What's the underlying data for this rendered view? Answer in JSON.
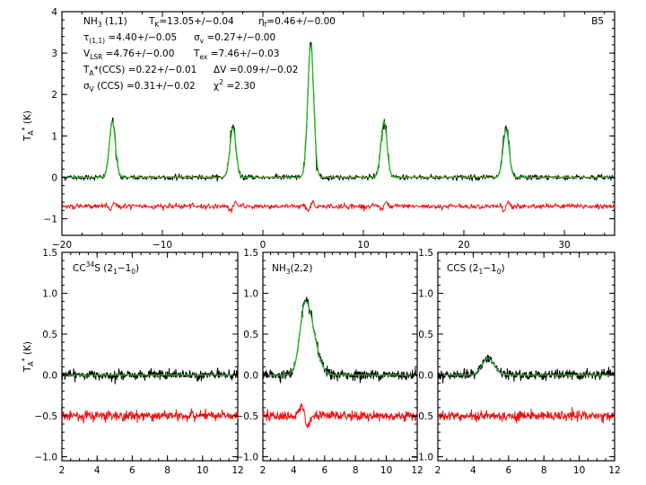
{
  "chart_data": [
    {
      "id": "nh3_11",
      "type": "line",
      "title": "",
      "xlabel": "",
      "ylabel": "T_A* (K)",
      "xlim": [
        -20,
        35
      ],
      "ylim": [
        -1.4,
        4.0
      ],
      "xticks": [
        -20,
        -10,
        0,
        10,
        20,
        30
      ],
      "yticks": [
        -1,
        0,
        1,
        2,
        3,
        4
      ],
      "tag": "B5",
      "annotations": {
        "line1_mol": "NH",
        "line1_mol_sub": "3",
        "line1_trans": " (1,1)",
        "tk_label": "T",
        "tk_sub": "K",
        "tk_val": "=13.05+/−0.04",
        "eta_label": "η",
        "eta_sub": "f",
        "eta_val": "=0.46+/−0.00",
        "tau_label": "τ",
        "tau_sub": "(1,1)",
        "tau_val": " =4.40+/−0.05",
        "sigv_label": "σ",
        "sigv_sub": "v",
        "sigv_val": " =0.27+/−0.00",
        "vlsr_label": "V",
        "vlsr_sub": "LSR",
        "vlsr_val": " =4.76+/−0.00",
        "tex_label": "T",
        "tex_sub": "ex",
        "tex_val": " =7.46+/−0.03",
        "ta_label": "T",
        "ta_sub": "A",
        "ta_val": "*(CCS)  =0.22+/−0.01",
        "dv_label": "ΔV",
        "dv_val": " =0.09+/−0.02",
        "sigccs_label": "σ",
        "sigccs_sub": "V",
        "sigccs_val": " (CCS)  =0.31+/−0.02",
        "chi_label": "χ",
        "chi_sup": "2",
        "chi_val": " =2.30"
      },
      "components": [
        {
          "center": -14.98,
          "amp": 1.35
        },
        {
          "center": -2.98,
          "amp": 1.2
        },
        {
          "center": 4.76,
          "amp": 3.2
        },
        {
          "center": 12.05,
          "amp": 1.35
        },
        {
          "center": 24.2,
          "amp": 1.15
        }
      ],
      "component_width": 0.3,
      "noise_rms": 0.03,
      "residual_offset": -0.7,
      "residual_rms": 0.03,
      "series": [
        {
          "role": "spectrum",
          "color": "#000000"
        },
        {
          "role": "fit",
          "color": "#22bb22"
        },
        {
          "role": "residual",
          "color": "#ee1111"
        }
      ]
    },
    {
      "id": "cc34s",
      "type": "line",
      "title": "",
      "xlabel": "",
      "ylabel": "T_A* (K)",
      "xlim": [
        2,
        12
      ],
      "ylim": [
        -1.05,
        1.5
      ],
      "xticks": [
        2,
        4,
        6,
        8,
        10,
        12
      ],
      "yticks": [
        -1.0,
        -0.5,
        0.0,
        0.5,
        1.0,
        1.5
      ],
      "label": {
        "main": "CC",
        "sup1": "34",
        "mid": "S (2",
        "sub1": "1",
        "dash": "−1",
        "sub2": "0",
        "end": ")"
      },
      "peak": 0.0,
      "center": 4.76,
      "width": 0.4,
      "noise_rms": 0.03,
      "residual_offset": -0.5,
      "residual_rms": 0.03
    },
    {
      "id": "nh3_22",
      "type": "line",
      "title": "",
      "xlabel": "",
      "ylabel": "",
      "xlim": [
        2,
        12
      ],
      "ylim": [
        -1.05,
        1.5
      ],
      "xticks": [
        2,
        4,
        6,
        8,
        10,
        12
      ],
      "yticks": [
        -1.0,
        -0.5,
        0.0,
        0.5,
        1.0,
        1.5
      ],
      "label": {
        "main": "NH",
        "sub1": "3",
        "end": "(2,2)"
      },
      "peak": 0.9,
      "center": 4.76,
      "width": 0.35,
      "tail": 0.55,
      "noise_rms": 0.03,
      "residual_offset": -0.5,
      "residual_rms": 0.03,
      "residual_feature": {
        "center": 4.7,
        "amp": 0.3
      }
    },
    {
      "id": "ccs",
      "type": "line",
      "title": "",
      "xlabel": "",
      "ylabel": "",
      "xlim": [
        2,
        12
      ],
      "ylim": [
        -1.05,
        1.5
      ],
      "xticks": [
        2,
        4,
        6,
        8,
        10,
        12
      ],
      "yticks": [
        -1.0,
        -0.5,
        0.0,
        0.5,
        1.0,
        1.5
      ],
      "label": {
        "main": "CCS (2",
        "sub1": "1",
        "dash": "−1",
        "sub2": "0",
        "end": ")"
      },
      "peak": 0.2,
      "center": 4.85,
      "width": 0.35,
      "noise_rms": 0.03,
      "residual_offset": -0.5,
      "residual_rms": 0.03
    }
  ]
}
